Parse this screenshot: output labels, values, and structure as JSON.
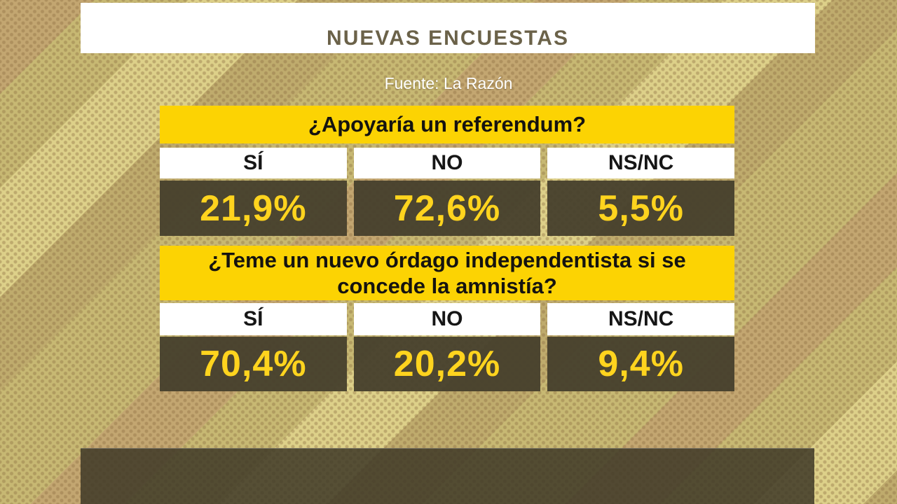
{
  "title_bar": {
    "title": "NUEVAS ENCUESTAS"
  },
  "source": {
    "label": "Fuente: La Razón"
  },
  "polls": [
    {
      "question": "¿Apoyaría un referendum?",
      "answers": [
        {
          "label": "SÍ",
          "value": "21,9%"
        },
        {
          "label": "NO",
          "value": "72,6%"
        },
        {
          "label": "NS/NC",
          "value": "5,5%"
        }
      ]
    },
    {
      "question": "¿Teme un nuevo órdago independentista si se concede la amnistía?",
      "answers": [
        {
          "label": "SÍ",
          "value": "70,4%"
        },
        {
          "label": "NO",
          "value": "20,2%"
        },
        {
          "label": "NS/NC",
          "value": "9,4%"
        }
      ]
    }
  ],
  "colors": {
    "accent_yellow": "#fcd303",
    "value_text_yellow": "#ffd41e",
    "dark_box": "#4b4532",
    "title_text": "#6b6249",
    "background_base": "#c7b873",
    "white_panel": "#ffffff"
  },
  "chart_data": [
    {
      "type": "table",
      "title": "¿Apoyaría un referendum?",
      "categories": [
        "SÍ",
        "NO",
        "NS/NC"
      ],
      "values": [
        21.9,
        72.6,
        5.5
      ],
      "value_labels": [
        "21,9%",
        "72,6%",
        "5,5%"
      ],
      "unit": "percent",
      "source": "Fuente: La Razón"
    },
    {
      "type": "table",
      "title": "¿Teme un nuevo órdago independentista si se concede la amnistía?",
      "categories": [
        "SÍ",
        "NO",
        "NS/NC"
      ],
      "values": [
        70.4,
        20.2,
        9.4
      ],
      "value_labels": [
        "70,4%",
        "20,2%",
        "9,4%"
      ],
      "unit": "percent",
      "source": "Fuente: La Razón"
    }
  ]
}
